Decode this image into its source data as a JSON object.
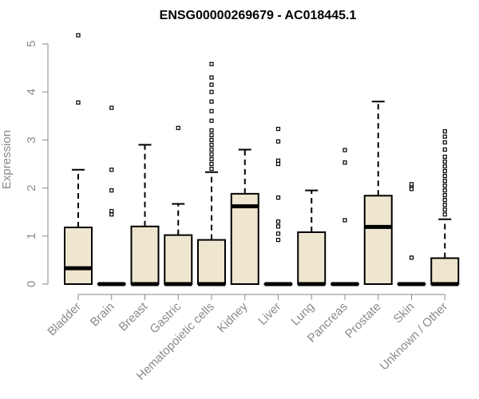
{
  "chart_data": {
    "type": "boxplot",
    "title": "ENSG00000269679 - AC018445.1",
    "xlabel": "",
    "ylabel": "Expression",
    "ylim": [
      0,
      5.2
    ],
    "yticks": [
      "0",
      "1",
      "2",
      "3",
      "4",
      "5"
    ],
    "grid": false,
    "legend": "none",
    "colors": {
      "box_fill": "#efe6cf",
      "stroke": "#000000",
      "axis_text": "#8a8a8a"
    },
    "categories": [
      "Bladder",
      "Brain",
      "Breast",
      "Gastric",
      "Hematopoietic cells",
      "Kidney",
      "Liver",
      "Lung",
      "Pancreas",
      "Prostate",
      "Skin",
      "Unknown / Other"
    ],
    "boxes": [
      {
        "q1": 0,
        "median": 0.33,
        "q3": 1.18,
        "whisker_low": 0,
        "whisker_high": 2.38,
        "outliers": [
          3.78,
          5.18
        ]
      },
      {
        "q1": 0,
        "median": 0,
        "q3": 0,
        "whisker_low": 0,
        "whisker_high": 0,
        "outliers": [
          1.45,
          1.52,
          1.95,
          2.38,
          3.67
        ]
      },
      {
        "q1": 0,
        "median": 0,
        "q3": 1.2,
        "whisker_low": 0,
        "whisker_high": 2.9,
        "outliers": []
      },
      {
        "q1": 0,
        "median": 0,
        "q3": 1.02,
        "whisker_low": 0,
        "whisker_high": 1.67,
        "outliers": [
          3.25
        ]
      },
      {
        "q1": 0,
        "median": 0,
        "q3": 0.92,
        "whisker_low": 0,
        "whisker_high": 2.33,
        "outliers": [
          2.4,
          2.5,
          2.6,
          2.7,
          2.8,
          2.9,
          3.0,
          3.1,
          3.2,
          3.4,
          3.6,
          3.8,
          4.0,
          4.15,
          4.3,
          4.58
        ]
      },
      {
        "q1": 0,
        "median": 1.62,
        "q3": 1.88,
        "whisker_low": 0,
        "whisker_high": 2.8,
        "outliers": []
      },
      {
        "q1": 0,
        "median": 0,
        "q3": 0,
        "whisker_low": 0,
        "whisker_high": 0,
        "outliers": [
          0.92,
          1.05,
          1.2,
          1.3,
          1.8,
          2.5,
          2.57,
          2.97,
          3.23
        ]
      },
      {
        "q1": 0,
        "median": 0,
        "q3": 1.08,
        "whisker_low": 0,
        "whisker_high": 1.95,
        "outliers": []
      },
      {
        "q1": 0,
        "median": 0,
        "q3": 0,
        "whisker_low": 0,
        "whisker_high": 0,
        "outliers": [
          1.33,
          2.53,
          2.79
        ]
      },
      {
        "q1": 0,
        "median": 1.19,
        "q3": 1.84,
        "whisker_low": 0,
        "whisker_high": 3.8,
        "outliers": []
      },
      {
        "q1": 0,
        "median": 0,
        "q3": 0,
        "whisker_low": 0,
        "whisker_high": 0,
        "outliers": [
          0.55,
          1.98,
          2.05,
          2.08
        ]
      },
      {
        "q1": 0,
        "median": 0,
        "q3": 0.54,
        "whisker_low": 0,
        "whisker_high": 1.35,
        "outliers": [
          1.45,
          1.55,
          1.65,
          1.75,
          1.85,
          1.95,
          2.05,
          2.15,
          2.25,
          2.35,
          2.45,
          2.55,
          2.65,
          2.8,
          2.95,
          3.07,
          3.18
        ]
      }
    ]
  }
}
